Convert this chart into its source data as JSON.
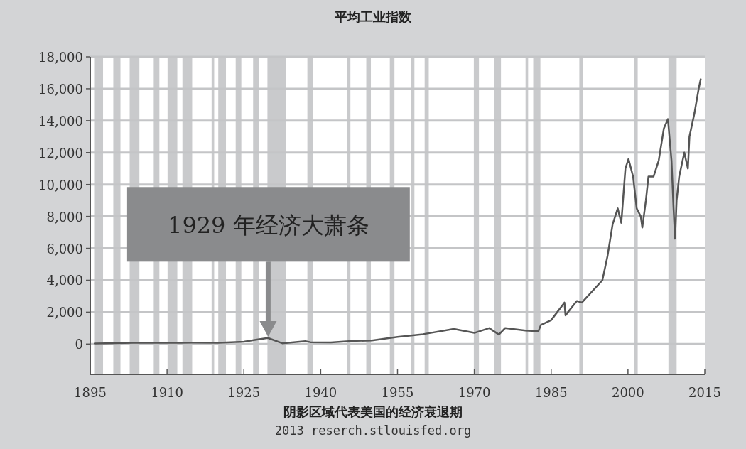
{
  "chart_data": {
    "type": "line",
    "title": "平均工业指数",
    "x": [
      1896,
      1900,
      1905,
      1910,
      1915,
      1920,
      1925,
      1928,
      1929.7,
      1932.5,
      1937,
      1938,
      1942,
      1946,
      1950,
      1955,
      1960,
      1966,
      1970,
      1972.9,
      1974.8,
      1976,
      1980,
      1982.5,
      1983,
      1985,
      1987.6,
      1987.8,
      1990,
      1991,
      1995,
      1996,
      1997,
      1998,
      1998.7,
      1999.5,
      2000.1,
      2001,
      2001.7,
      2002.5,
      2002.8,
      2003.5,
      2004,
      2005,
      2006,
      2007,
      2007.8,
      2008.5,
      2008.9,
      2009.2,
      2009.5,
      2010,
      2011,
      2011.7,
      2012,
      2013,
      2013.8,
      2014.2
    ],
    "series": [
      {
        "color": "#555555",
        "values": [
          40,
          60,
          90,
          80,
          90,
          80,
          150,
          300,
          380,
          50,
          180,
          120,
          100,
          190,
          230,
          450,
          620,
          950,
          700,
          1000,
          600,
          1000,
          850,
          800,
          1200,
          1500,
          2600,
          1800,
          2700,
          2600,
          4000,
          5500,
          7500,
          8500,
          7600,
          11000,
          11600,
          10500,
          8500,
          8000,
          7300,
          9000,
          10500,
          10500,
          11500,
          13500,
          14100,
          11500,
          8500,
          6600,
          9000,
          10500,
          12000,
          11000,
          13000,
          14500,
          16000,
          16600
        ]
      }
    ],
    "xlim": [
      1895,
      2015
    ],
    "xticks": [
      1895,
      1910,
      1925,
      1940,
      1955,
      1970,
      1985,
      2000,
      2015
    ],
    "ylim": [
      -1900,
      18000
    ],
    "yticks": [
      {
        "value": 0,
        "label": "0"
      },
      {
        "value": 2000,
        "label": "2,000"
      },
      {
        "value": 4000,
        "label": "4,000"
      },
      {
        "value": 6000,
        "label": "6,000"
      },
      {
        "value": 8000,
        "label": "8,000"
      },
      {
        "value": 10000,
        "label": "10,000"
      },
      {
        "value": 12000,
        "label": "12,000"
      },
      {
        "value": 14000,
        "label": "14,000"
      },
      {
        "value": 16000,
        "label": "16,000"
      },
      {
        "value": 18000,
        "label": "18,000"
      }
    ],
    "grid": "y",
    "bands": [
      {
        "axis": "x",
        "from": 1895.9,
        "to": 1897.5,
        "color": "#c9cacc"
      },
      {
        "axis": "x",
        "from": 1899.5,
        "to": 1900.9,
        "color": "#c9cacc"
      },
      {
        "axis": "x",
        "from": 1902.7,
        "to": 1904.6,
        "color": "#c9cacc"
      },
      {
        "axis": "x",
        "from": 1907.4,
        "to": 1908.5,
        "color": "#c9cacc"
      },
      {
        "axis": "x",
        "from": 1910.1,
        "to": 1912.0,
        "color": "#c9cacc"
      },
      {
        "axis": "x",
        "from": 1913.0,
        "to": 1914.9,
        "color": "#c9cacc"
      },
      {
        "axis": "x",
        "from": 1918.7,
        "to": 1919.2,
        "color": "#c9cacc"
      },
      {
        "axis": "x",
        "from": 1920.0,
        "to": 1921.5,
        "color": "#c9cacc"
      },
      {
        "axis": "x",
        "from": 1923.4,
        "to": 1924.5,
        "color": "#c9cacc"
      },
      {
        "axis": "x",
        "from": 1926.8,
        "to": 1927.9,
        "color": "#c9cacc"
      },
      {
        "axis": "x",
        "from": 1929.6,
        "to": 1933.2,
        "color": "#c9cacc"
      },
      {
        "axis": "x",
        "from": 1937.4,
        "to": 1938.5,
        "color": "#c9cacc"
      },
      {
        "axis": "x",
        "from": 1945.1,
        "to": 1945.8,
        "color": "#c9cacc"
      },
      {
        "axis": "x",
        "from": 1948.9,
        "to": 1949.8,
        "color": "#c9cacc"
      },
      {
        "axis": "x",
        "from": 1953.5,
        "to": 1954.4,
        "color": "#c9cacc"
      },
      {
        "axis": "x",
        "from": 1957.6,
        "to": 1958.3,
        "color": "#c9cacc"
      },
      {
        "axis": "x",
        "from": 1960.3,
        "to": 1961.1,
        "color": "#c9cacc"
      },
      {
        "axis": "x",
        "from": 1969.9,
        "to": 1970.9,
        "color": "#c9cacc"
      },
      {
        "axis": "x",
        "from": 1973.9,
        "to": 1975.2,
        "color": "#c9cacc"
      },
      {
        "axis": "x",
        "from": 1980.0,
        "to": 1980.5,
        "color": "#c9cacc"
      },
      {
        "axis": "x",
        "from": 1981.5,
        "to": 1982.9,
        "color": "#c9cacc"
      },
      {
        "axis": "x",
        "from": 1990.5,
        "to": 1991.2,
        "color": "#c9cacc"
      },
      {
        "axis": "x",
        "from": 2001.2,
        "to": 2001.9,
        "color": "#c9cacc"
      },
      {
        "axis": "x",
        "from": 2007.9,
        "to": 2009.5,
        "color": "#c9cacc"
      }
    ],
    "annotations": [
      "1929 年经济大萧条",
      "阴影区域代表美国的经济衰退期",
      "2013 reserch.stlouisfed.org"
    ]
  }
}
